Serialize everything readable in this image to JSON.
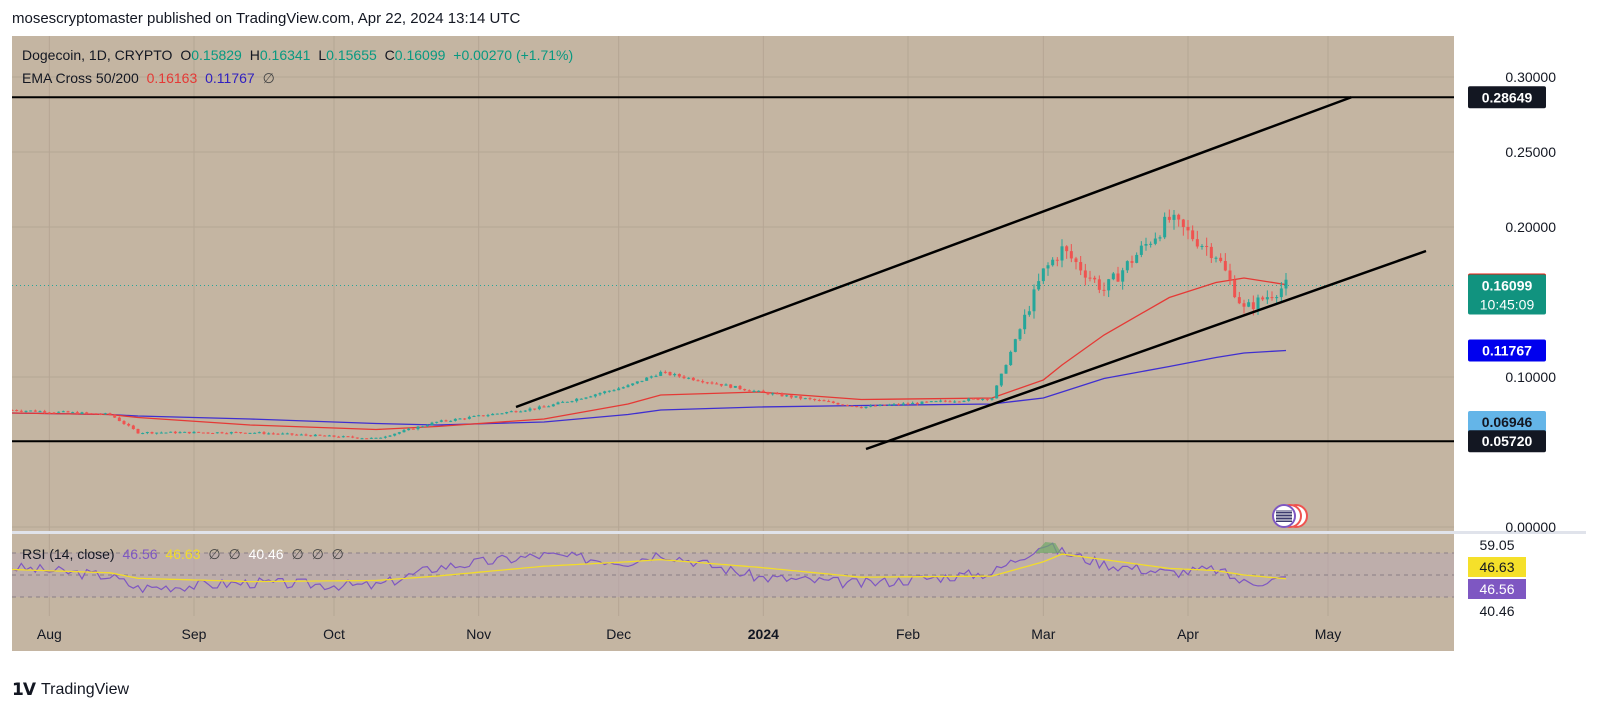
{
  "header": {
    "attribution": "mosescryptomaster published on TradingView.com, Apr 22, 2024 13:14 UTC"
  },
  "legend": {
    "symbol": "Dogecoin, 1D, CRYPTO",
    "o_label": "O",
    "o_value": "0.15829",
    "h_label": "H",
    "h_value": "0.16341",
    "l_label": "L",
    "l_value": "0.15655",
    "c_label": "C",
    "c_value": "0.16099",
    "change": "+0.00270 (+1.71%)",
    "ema_label": "EMA Cross 50/200",
    "ema50": "0.16163",
    "ema200": "0.11767",
    "ema_extra": "∅",
    "rsi_label": "RSI (14, close)",
    "rsi_value": "46.56",
    "rsi_ma": "46.63",
    "rsi_e1": "∅",
    "rsi_e2": "∅",
    "rsi_lower": "40.46",
    "rsi_e3": "∅",
    "rsi_e4": "∅",
    "rsi_e5": "∅"
  },
  "colors": {
    "panel_bg": "#c4b5a2",
    "up": "#26a69a",
    "down": "#ef5350",
    "ema50": "#e53935",
    "ema200": "#3f2fd0",
    "rsi": "#7e57c2",
    "rsi_ma": "#f2dc2a",
    "grid": "#b5a694",
    "line": "#000000"
  },
  "price_axis": {
    "ticks": [
      "0.30000",
      "0.25000",
      "0.20000",
      "0.10000",
      "0.00000"
    ],
    "labels": {
      "resistance": "0.28649",
      "ema50": "0.16163",
      "last": "0.16099",
      "countdown": "10:45:09",
      "ema200": "0.11767",
      "extra": "0.06946",
      "support": "0.05720"
    }
  },
  "rsi_axis": {
    "upper": "59.05",
    "ma": "46.63",
    "value": "46.56",
    "lower": "40.46"
  },
  "time_axis": [
    "Aug",
    "Sep",
    "Oct",
    "Nov",
    "Dec",
    "2024",
    "Feb",
    "Mar",
    "Apr",
    "May"
  ],
  "footer": {
    "brand": "TradingView"
  },
  "chart_data": {
    "type": "line",
    "title": "Dogecoin, 1D, CRYPTO",
    "price_range": [
      0,
      0.3
    ],
    "rsi_range": [
      20,
      80
    ],
    "grid": true,
    "x": [
      "2023-07-24",
      "2023-08-14",
      "2023-08-20",
      "2023-09-13",
      "2023-10-10",
      "2023-10-23",
      "2023-11-15",
      "2023-12-03",
      "2023-12-10",
      "2023-12-31",
      "2024-01-22",
      "2024-02-19",
      "2024-03-01",
      "2024-03-05",
      "2024-03-14",
      "2024-03-28",
      "2024-04-07",
      "2024-04-13",
      "2024-04-22"
    ],
    "series": [
      {
        "name": "Dogecoin",
        "values": [
          0.078,
          0.075,
          0.063,
          0.063,
          0.059,
          0.07,
          0.08,
          0.094,
          0.103,
          0.09,
          0.08,
          0.086,
          0.17,
          0.185,
          0.158,
          0.205,
          0.182,
          0.145,
          0.161
        ]
      },
      {
        "name": "EMA 50",
        "values": [
          0.076,
          0.075,
          0.073,
          0.068,
          0.065,
          0.067,
          0.072,
          0.082,
          0.088,
          0.09,
          0.085,
          0.086,
          0.098,
          0.108,
          0.128,
          0.153,
          0.163,
          0.166,
          0.16163
        ]
      },
      {
        "name": "EMA 200",
        "values": [
          0.076,
          0.075,
          0.074,
          0.072,
          0.069,
          0.068,
          0.07,
          0.075,
          0.078,
          0.08,
          0.081,
          0.082,
          0.086,
          0.09,
          0.099,
          0.107,
          0.113,
          0.116,
          0.11767
        ]
      },
      {
        "name": "RSI",
        "values": [
          57,
          49,
          38,
          43,
          40,
          57,
          68,
          62,
          70,
          48,
          42,
          52,
          78,
          71,
          60,
          52,
          55,
          43,
          46.56
        ]
      },
      {
        "name": "RSI MA",
        "values": [
          55,
          52,
          47,
          44,
          45,
          49,
          58,
          62,
          64,
          57,
          48,
          49,
          62,
          69,
          64,
          56,
          54,
          50,
          46.63
        ]
      }
    ],
    "horizontal_lines": [
      0.28649,
      0.0572
    ],
    "channel": {
      "upper": [
        [
          "2023-11-09",
          0.08
        ],
        [
          "2024-05-06",
          0.2865
        ]
      ],
      "lower": [
        [
          "2024-01-23",
          0.052
        ],
        [
          "2024-05-22",
          0.184
        ]
      ]
    }
  }
}
